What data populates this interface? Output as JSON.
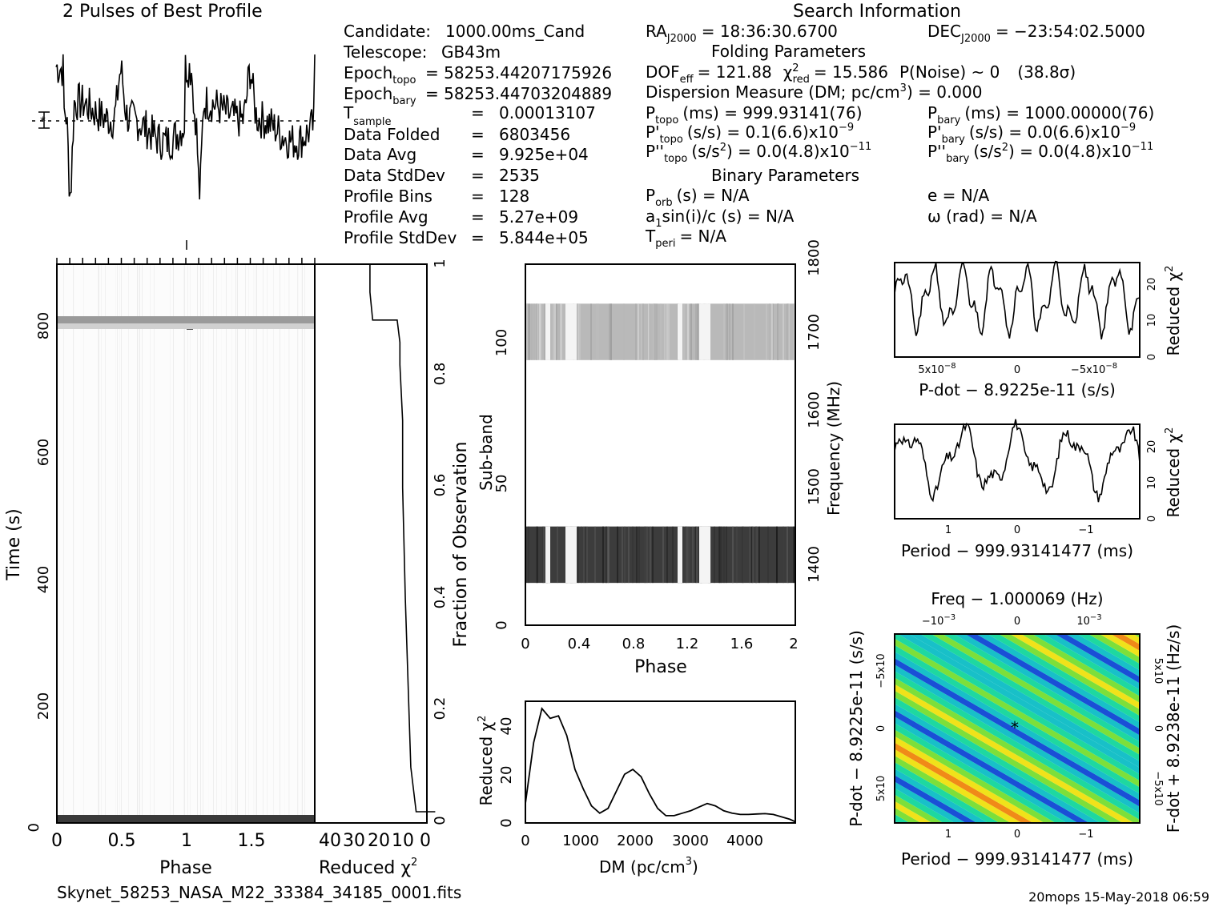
{
  "header": {
    "profile_title": "2 Pulses of Best Profile",
    "search_title": "Search Information"
  },
  "info_left": [
    {
      "label": "Candidate:",
      "value": "1000.00ms_Cand"
    },
    {
      "label": "Telescope:",
      "value": "GB43m"
    },
    {
      "label": "Epoch",
      "sub": "topo",
      "value": "= 58253.44207175926"
    },
    {
      "label": "Epoch",
      "sub": "bary",
      "value": "= 58253.44703204889"
    },
    {
      "label": "T",
      "sub": "sample",
      "value": "=",
      "value2": "0.00013107"
    },
    {
      "label": "Data Folded",
      "value": "=",
      "value2": "6803456"
    },
    {
      "label": "Data Avg",
      "value": "=",
      "value2": "9.925e+04"
    },
    {
      "label": "Data StdDev",
      "value": "=",
      "value2": "2535"
    },
    {
      "label": "Profile Bins",
      "value": "=",
      "value2": "128"
    },
    {
      "label": "Profile Avg",
      "value": "=",
      "value2": "5.27e+09"
    },
    {
      "label": "Profile StdDev",
      "value": "=",
      "value2": "5.844e+05"
    }
  ],
  "info_mid": {
    "ra": "= 18:36:30.6700",
    "dec": "= −23:54:02.5000",
    "folding_title": "Folding Parameters",
    "dof": "= 121.88",
    "chi2": "= 15.586",
    "pnoise": "P(Noise) ~ 0",
    "sigma": "(38.8σ)",
    "dm": "Dispersion Measure (DM; pc/cm",
    "dm_value": ") = 0.000",
    "ptopo": "(ms) =  999.93141(76)",
    "pbary": "(ms) =  1000.00000(76)",
    "pdtopo": "(s/s) =  0.1(6.6)x10",
    "pdtopo_exp": "−9",
    "pdbary": "(s/s) = 0.0(6.6)x10",
    "pdbary_exp": "−9",
    "pddtopo": ") = 0.0(4.8)x10",
    "pddtopo_exp": "−11",
    "pddbary": ") = 0.0(4.8)x10",
    "pddbary_exp": "−11",
    "binary_title": "Binary Parameters",
    "porb": "(s) = N/A",
    "ecc": "e = N/A",
    "asini": "a",
    "asini_rest": "sin(i)/c (s) = N/A",
    "omega": "ω (rad) = N/A",
    "tperi": "= N/A"
  },
  "labels": {
    "time_ylabel": "Time (s)",
    "phase_xlabel": "Phase",
    "redchi_xlabel": "Reduced χ",
    "frac_obs": "Fraction of Observation",
    "subband": "Sub-band",
    "frequency": "Frequency (MHz)",
    "phase2": "Phase",
    "dm_xlabel": "DM (pc/cm",
    "redchi_ylabel": "Reduced χ",
    "pdot_xlabel": "P-dot − 8.9225e-11 (s/s)",
    "period_xlabel": "Period − 999.93141477 (ms)",
    "period_xlabel2": "Period − 999.93141477 (ms)",
    "freq_title": "Freq − 1.000069 (Hz)",
    "pdot_ylabel": "P-dot − 8.9225e-11 (s/s)",
    "fdot_ylabel": "F-dot + 8.9238e-11 (Hz/s)",
    "filename": "Skynet_58253_NASA_M22_33384_34185_0001.fits",
    "stamp": "20mops 15-May-2018 06:59"
  },
  "ticks": {
    "time_y": [
      "0",
      "200",
      "400",
      "600",
      "800"
    ],
    "phase_x": [
      "0",
      "0.5",
      "1",
      "1.5"
    ],
    "redchi_x": [
      "40",
      "30",
      "20",
      "10",
      "0"
    ],
    "frac_y": [
      "0",
      "0.2",
      "0.4",
      "0.6",
      "0.8",
      "1"
    ],
    "subband_y": [
      "0",
      "50",
      "100"
    ],
    "freq_y": [
      "1400",
      "1500",
      "1600",
      "1700",
      "1800"
    ],
    "phase2_x": [
      "0",
      "0.4",
      "0.8",
      "1.2",
      "1.6",
      "2"
    ],
    "dm_x": [
      "0",
      "1000",
      "2000",
      "3000",
      "4000"
    ],
    "dm_y": [
      "0",
      "20",
      "40"
    ],
    "pdot_x": [
      "5x10",
      "0",
      "−5x10"
    ],
    "pd_exp": "−8",
    "chi_y": [
      "0",
      "10",
      "20"
    ],
    "period_x": [
      "1",
      "0",
      "−1"
    ],
    "freq_top": [
      "−10",
      "0",
      "10"
    ],
    "freq_exp": "−3",
    "pdot_y": [
      "5x10",
      "0",
      "−5x10"
    ],
    "fdot_y": [
      "5x10",
      "0",
      "−5x10"
    ]
  },
  "chart_data": [
    {
      "type": "line",
      "title": "2 Pulses of Best Profile",
      "xlabel": "",
      "ylabel": "",
      "x_range": [
        0,
        2
      ],
      "pulse_dips_phase": [
        0.12,
        1.12
      ],
      "note_values": "two repeated pulses with sharp dips near phase 0.1 and 1.1"
    },
    {
      "type": "heatmap",
      "xlabel": "Phase",
      "ylabel": "Time (s)",
      "xlim": [
        0,
        2
      ],
      "ylim": [
        0,
        900
      ],
      "bright_rows_time": [
        13,
        795,
        808
      ]
    },
    {
      "type": "line",
      "xlabel": "Reduced χ²",
      "ylabel": "Fraction of Observation",
      "xlim": [
        40,
        0
      ],
      "ylim": [
        0,
        1
      ],
      "x": [
        1,
        8,
        10,
        12,
        13,
        13,
        14,
        14,
        15,
        24,
        25,
        25
      ],
      "y": [
        0.02,
        0.02,
        0.1,
        0.4,
        0.6,
        0.72,
        0.82,
        0.86,
        0.9,
        0.9,
        0.95,
        1.0
      ]
    },
    {
      "type": "heatmap",
      "xlabel": "Phase",
      "ylabel": "Sub-band",
      "xlim": [
        0,
        2
      ],
      "ylim": [
        0,
        128
      ],
      "freq_range_mhz": [
        1336,
        1800
      ],
      "filled_subbands": [
        [
          15,
          35
        ],
        [
          94,
          114
        ]
      ]
    },
    {
      "type": "line",
      "xlabel": "DM (pc/cm³)",
      "ylabel": "Reduced χ²",
      "xlim": [
        0,
        4900
      ],
      "ylim": [
        0,
        50
      ],
      "x": [
        0,
        150,
        300,
        450,
        600,
        750,
        900,
        1050,
        1200,
        1350,
        1500,
        1650,
        1800,
        1950,
        2100,
        2250,
        2400,
        2550,
        2700,
        2850,
        3000,
        3150,
        3300,
        3450,
        3600,
        3750,
        3900,
        4050,
        4200,
        4350,
        4500,
        4650,
        4800,
        4900
      ],
      "y": [
        8,
        33,
        47,
        43,
        44,
        36,
        22,
        14,
        7,
        4,
        6,
        13,
        20,
        22,
        19,
        12,
        6,
        3,
        3,
        4,
        5,
        6.5,
        8,
        7,
        5,
        4,
        3.5,
        3.5,
        3.7,
        3.8,
        3.5,
        2.5,
        1.5,
        0.5
      ]
    },
    {
      "type": "line",
      "xlabel": "P-dot − 8.9225e-11 (s/s)",
      "ylabel": "Reduced χ²",
      "ylim": [
        0,
        25
      ],
      "x_range_label": "±7.5x10⁻⁸",
      "peaks": 8,
      "y_max": 24,
      "y_min": 6
    },
    {
      "type": "line",
      "xlabel": "Period − 999.93141477 (ms)",
      "ylabel": "Reduced χ²",
      "ylim": [
        0,
        25
      ],
      "xlim": [
        1.8,
        -1.8
      ],
      "y_max": 25,
      "y_min": 7
    },
    {
      "type": "heatmap",
      "xlabel": "Period − 999.93141477 (ms)",
      "ylabel": "P-dot − 8.9225e-11 (s/s)",
      "top_xlabel": "Freq − 1.000069 (Hz)",
      "right_ylabel": "F-dot + 8.9238e-11 (Hz/s)",
      "xlim": [
        1.8,
        -1.8
      ],
      "colors": [
        "#1a4fd6",
        "#18c0c8",
        "#1ed8a0",
        "#7ddf3a",
        "#f0e21a",
        "#f08a18",
        "#e0302a"
      ]
    }
  ]
}
